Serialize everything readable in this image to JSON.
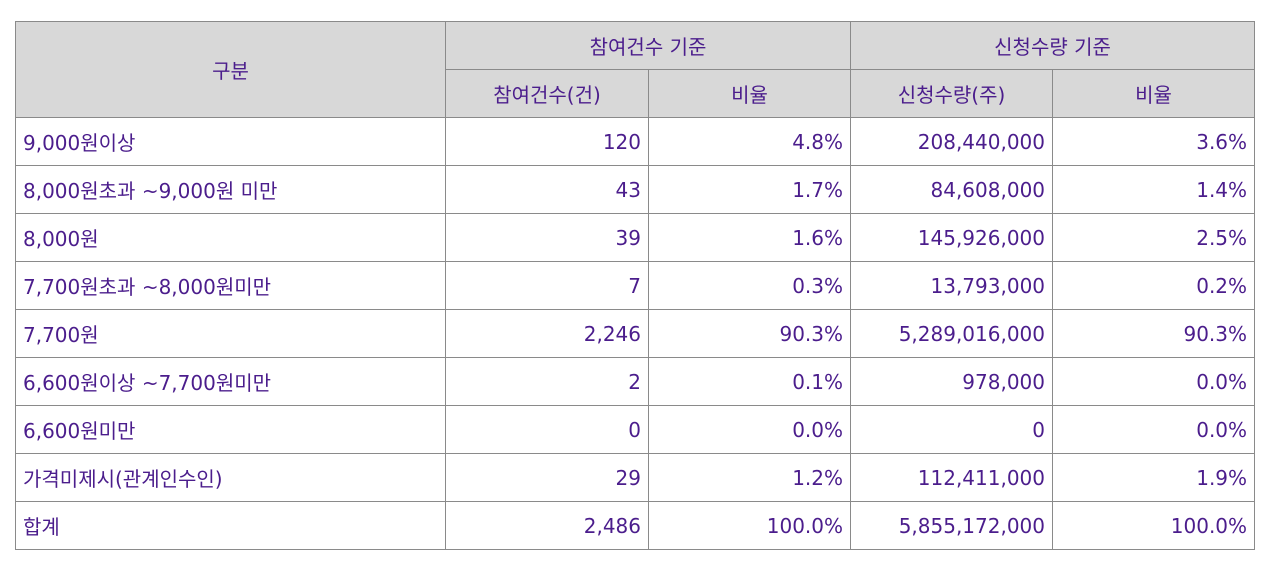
{
  "header": {
    "category": "구분",
    "group_count": "참여건수 기준",
    "group_qty": "신청수량 기준",
    "col_count": "참여건수(건)",
    "col_count_ratio": "비율",
    "col_qty": "신청수량(주)",
    "col_qty_ratio": "비율"
  },
  "rows": [
    {
      "label": "9,000원이상",
      "count": "120",
      "count_ratio": "4.8%",
      "qty": "208,440,000",
      "qty_ratio": "3.6%"
    },
    {
      "label": "8,000원초과 ~9,000원 미만",
      "count": "43",
      "count_ratio": "1.7%",
      "qty": "84,608,000",
      "qty_ratio": "1.4%"
    },
    {
      "label": "8,000원",
      "count": "39",
      "count_ratio": "1.6%",
      "qty": "145,926,000",
      "qty_ratio": "2.5%"
    },
    {
      "label": "7,700원초과 ~8,000원미만",
      "count": "7",
      "count_ratio": "0.3%",
      "qty": "13,793,000",
      "qty_ratio": "0.2%"
    },
    {
      "label": "7,700원",
      "count": "2,246",
      "count_ratio": "90.3%",
      "qty": "5,289,016,000",
      "qty_ratio": "90.3%"
    },
    {
      "label": "6,600원이상 ~7,700원미만",
      "count": "2",
      "count_ratio": "0.1%",
      "qty": "978,000",
      "qty_ratio": "0.0%"
    },
    {
      "label": "6,600원미만",
      "count": "0",
      "count_ratio": "0.0%",
      "qty": "0",
      "qty_ratio": "0.0%"
    },
    {
      "label": "가격미제시(관계인수인)",
      "count": "29",
      "count_ratio": "1.2%",
      "qty": "112,411,000",
      "qty_ratio": "1.9%"
    },
    {
      "label": "합계",
      "count": "2,486",
      "count_ratio": "100.0%",
      "qty": "5,855,172,000",
      "qty_ratio": "100.0%"
    }
  ],
  "colors": {
    "text": "#4b1d8c",
    "header_bg": "#d8d8d8",
    "border": "#8a8a8a"
  }
}
